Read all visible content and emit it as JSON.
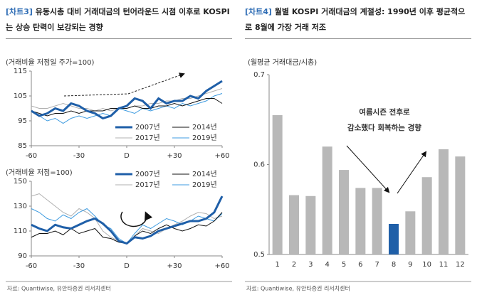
{
  "chart_data": [
    {
      "type": "line",
      "label": "[차트3]",
      "title": "유동시총 대비 거래대금의 턴어라운드 시점 이후로 KOSPI는 상승 탄력이 보강되는 경향",
      "source": "자료: Quantiwise, 유안타증권 리서치센터",
      "ylabel": "(거래비율 저점일 주가=100)",
      "x": [
        -60,
        -55,
        -50,
        -45,
        -40,
        -35,
        -30,
        -25,
        -20,
        -15,
        -10,
        -5,
        0,
        5,
        10,
        15,
        20,
        25,
        30,
        35,
        40,
        45,
        50,
        55,
        60
      ],
      "xlim": [
        -60,
        60
      ],
      "xticks": [
        -60,
        -30,
        {
          "value": 0,
          "label": "D"
        },
        {
          "value": 30,
          "label": "+30"
        },
        {
          "value": 60,
          "label": "+60"
        }
      ],
      "ylim": [
        85,
        115
      ],
      "yticks": [
        85,
        95,
        105,
        115
      ],
      "legend": "lower right",
      "series": [
        {
          "name": "2007년",
          "color": "#1f5fa8",
          "width": 3,
          "values": [
            99,
            97,
            98,
            100,
            99,
            102,
            101,
            99,
            98,
            96,
            97,
            100,
            101,
            104,
            103,
            100,
            104,
            102,
            103,
            103,
            105,
            104,
            107,
            109,
            111
          ]
        },
        {
          "name": "2014년",
          "color": "#111111",
          "width": 1,
          "values": [
            99,
            98,
            97,
            98,
            98,
            99,
            98,
            99,
            99,
            99,
            100,
            100,
            100,
            101,
            100,
            100,
            101,
            101,
            102,
            101,
            102,
            103,
            104,
            104,
            102
          ]
        },
        {
          "name": "2017년",
          "color": "#b0b0b0",
          "width": 1,
          "values": [
            101,
            100,
            100,
            101,
            102,
            101,
            100,
            100,
            99,
            100,
            99,
            100,
            100,
            101,
            101,
            102,
            102,
            103,
            103,
            104,
            104,
            105,
            106,
            107,
            108
          ]
        },
        {
          "name": "2019년",
          "color": "#3d9be0",
          "width": 1,
          "values": [
            99,
            97,
            95,
            96,
            94,
            96,
            97,
            96,
            97,
            98,
            97,
            100,
            99,
            98,
            100,
            99,
            100,
            101,
            100,
            102,
            101,
            102,
            103,
            105,
            106
          ]
        }
      ]
    },
    {
      "type": "line",
      "ylabel": "(거래비율 저점=100)",
      "x": [
        -60,
        -55,
        -50,
        -45,
        -40,
        -35,
        -30,
        -25,
        -20,
        -15,
        -10,
        -5,
        0,
        5,
        10,
        15,
        20,
        25,
        30,
        35,
        40,
        45,
        50,
        55,
        60
      ],
      "xlim": [
        -60,
        60
      ],
      "xticks": [
        -60,
        -30,
        {
          "value": 0,
          "label": "D"
        },
        {
          "value": 30,
          "label": "+30"
        },
        {
          "value": 60,
          "label": "+60"
        }
      ],
      "ylim": [
        90,
        150
      ],
      "yticks": [
        90,
        110,
        130,
        150
      ],
      "legend": "upper right",
      "series": [
        {
          "name": "2007년",
          "color": "#1f5fa8",
          "width": 3,
          "values": [
            115,
            112,
            110,
            115,
            113,
            112,
            115,
            118,
            120,
            116,
            110,
            102,
            100,
            105,
            104,
            106,
            110,
            112,
            114,
            116,
            118,
            118,
            120,
            125,
            138
          ]
        },
        {
          "name": "2014년",
          "color": "#111111",
          "width": 1,
          "values": [
            105,
            108,
            108,
            110,
            107,
            112,
            108,
            110,
            112,
            105,
            104,
            101,
            100,
            106,
            110,
            108,
            112,
            115,
            112,
            110,
            112,
            115,
            114,
            118,
            125
          ]
        },
        {
          "name": "2017년",
          "color": "#b0b0b0",
          "width": 1,
          "values": [
            138,
            140,
            135,
            130,
            125,
            122,
            128,
            125,
            120,
            110,
            105,
            102,
            100,
            106,
            112,
            110,
            108,
            112,
            115,
            118,
            122,
            125,
            124,
            120,
            122
          ]
        },
        {
          "name": "2019년",
          "color": "#3d9be0",
          "width": 1,
          "values": [
            128,
            125,
            120,
            118,
            123,
            120,
            125,
            128,
            122,
            115,
            112,
            104,
            100,
            108,
            115,
            112,
            116,
            120,
            118,
            115,
            118,
            122,
            120,
            118,
            124
          ]
        }
      ]
    },
    {
      "type": "bar",
      "label": "[차트4]",
      "title": "월별 KOSPI 거래대금의 계절성: 1990년 이후 평균적으로 8월에 가장 거래 저조",
      "source": "자료: Quantiwise, 유안타증권 리서치센터",
      "ylabel": "(월평균 거래대금/시총)",
      "annotation": [
        "여름시즌 전후로",
        "감소했다 회복하는 경향"
      ],
      "categories": [
        "1",
        "2",
        "3",
        "4",
        "5",
        "6",
        "7",
        "8",
        "9",
        "10",
        "11",
        "12"
      ],
      "values": [
        0.655,
        0.566,
        0.565,
        0.62,
        0.594,
        0.574,
        0.574,
        0.534,
        0.548,
        0.586,
        0.617,
        0.609
      ],
      "colors": [
        "#b8b8b8",
        "#b8b8b8",
        "#b8b8b8",
        "#b8b8b8",
        "#b8b8b8",
        "#b8b8b8",
        "#b8b8b8",
        "#1f5fa8",
        "#b8b8b8",
        "#b8b8b8",
        "#b8b8b8",
        "#b8b8b8"
      ],
      "ylim": [
        0.5,
        0.7
      ],
      "yticks": [
        0.5,
        0.6,
        0.7
      ]
    }
  ]
}
